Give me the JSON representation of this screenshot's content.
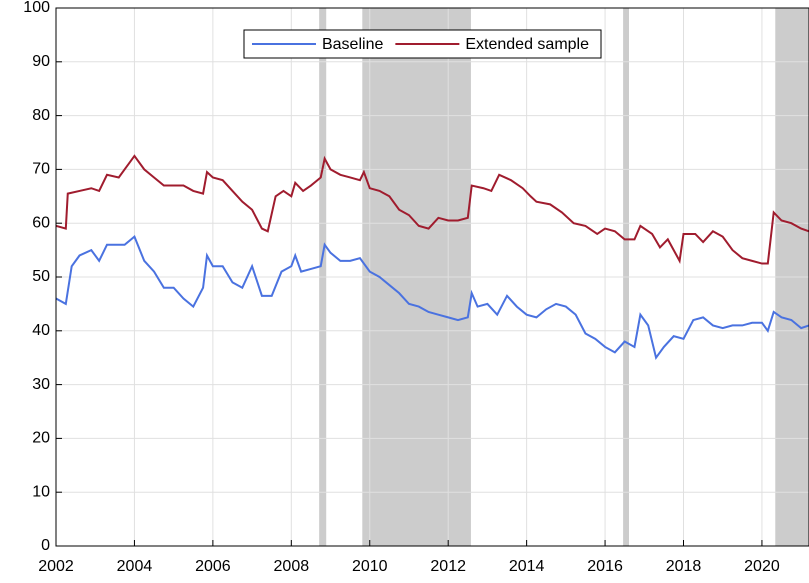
{
  "chart_data": {
    "type": "line",
    "xlim": [
      2002,
      2021.2
    ],
    "ylim": [
      0,
      100
    ],
    "xticks": [
      2002,
      2004,
      2006,
      2008,
      2010,
      2012,
      2014,
      2016,
      2018,
      2020
    ],
    "yticks": [
      0,
      10,
      20,
      30,
      40,
      50,
      60,
      70,
      80,
      90,
      100
    ],
    "grid": true,
    "legend": "upper center",
    "shaded_regions": [
      [
        2008.71,
        2008.89
      ],
      [
        2009.81,
        2012.58
      ],
      [
        2016.46,
        2016.61
      ],
      [
        2020.34,
        2021.2
      ]
    ],
    "shade_color": "#cccccc",
    "series": [
      {
        "name": "Baseline",
        "color": "#4a72e0",
        "x": [
          2002.0,
          2002.25,
          2002.4,
          2002.6,
          2002.9,
          2003.1,
          2003.3,
          2003.5,
          2003.75,
          2004.0,
          2004.25,
          2004.5,
          2004.75,
          2005.0,
          2005.25,
          2005.5,
          2005.75,
          2005.85,
          2006.0,
          2006.25,
          2006.5,
          2006.75,
          2007.0,
          2007.25,
          2007.5,
          2007.75,
          2008.0,
          2008.1,
          2008.25,
          2008.5,
          2008.75,
          2008.85,
          2009.0,
          2009.25,
          2009.5,
          2009.75,
          2010.0,
          2010.25,
          2010.5,
          2010.75,
          2011.0,
          2011.25,
          2011.5,
          2011.75,
          2012.0,
          2012.25,
          2012.5,
          2012.6,
          2012.75,
          2013.0,
          2013.25,
          2013.5,
          2013.75,
          2014.0,
          2014.25,
          2014.5,
          2014.75,
          2015.0,
          2015.25,
          2015.5,
          2015.75,
          2016.0,
          2016.25,
          2016.5,
          2016.75,
          2016.9,
          2017.1,
          2017.3,
          2017.5,
          2017.75,
          2018.0,
          2018.25,
          2018.5,
          2018.75,
          2019.0,
          2019.25,
          2019.5,
          2019.75,
          2020.0,
          2020.15,
          2020.3,
          2020.5,
          2020.75,
          2021.0,
          2021.2
        ],
        "values": [
          46,
          45,
          52,
          54,
          55,
          53,
          56,
          56,
          56,
          57.5,
          53,
          51,
          48,
          48,
          46,
          44.5,
          48,
          54,
          52,
          52,
          49,
          48,
          52,
          46.5,
          46.5,
          51,
          52,
          54,
          51,
          51.5,
          52,
          56,
          54.5,
          53,
          53,
          53.5,
          51,
          50,
          48.5,
          47,
          45,
          44.5,
          43.5,
          43,
          42.5,
          42,
          42.5,
          47,
          44.5,
          45,
          43,
          46.5,
          44.5,
          43,
          42.5,
          44,
          45,
          44.5,
          43,
          39.5,
          38.5,
          37,
          36,
          38,
          37,
          43,
          41,
          35,
          37,
          39,
          38.5,
          42,
          42.5,
          41,
          40.5,
          41,
          41,
          41.5,
          41.5,
          40,
          43.5,
          42.5,
          42,
          40.5,
          41
        ]
      },
      {
        "name": "Extended sample",
        "color": "#a01c2e",
        "x": [
          2002.0,
          2002.25,
          2002.3,
          2002.6,
          2002.9,
          2003.1,
          2003.3,
          2003.6,
          2003.8,
          2004.0,
          2004.25,
          2004.5,
          2004.75,
          2005.0,
          2005.25,
          2005.5,
          2005.75,
          2005.85,
          2006.0,
          2006.25,
          2006.5,
          2006.75,
          2007.0,
          2007.25,
          2007.4,
          2007.6,
          2007.8,
          2008.0,
          2008.1,
          2008.3,
          2008.5,
          2008.75,
          2008.85,
          2009.0,
          2009.25,
          2009.5,
          2009.75,
          2009.85,
          2010.0,
          2010.25,
          2010.5,
          2010.75,
          2011.0,
          2011.25,
          2011.5,
          2011.75,
          2012.0,
          2012.25,
          2012.5,
          2012.6,
          2012.9,
          2013.1,
          2013.3,
          2013.6,
          2013.9,
          2014.1,
          2014.25,
          2014.6,
          2014.9,
          2015.2,
          2015.5,
          2015.8,
          2016.0,
          2016.25,
          2016.5,
          2016.75,
          2016.9,
          2017.2,
          2017.4,
          2017.6,
          2017.9,
          2018.0,
          2018.3,
          2018.5,
          2018.75,
          2019.0,
          2019.25,
          2019.5,
          2019.75,
          2020.0,
          2020.15,
          2020.3,
          2020.5,
          2020.75,
          2021.0,
          2021.2
        ],
        "values": [
          59.5,
          59,
          65.5,
          66,
          66.5,
          66,
          69,
          68.5,
          70.5,
          72.5,
          70,
          68.5,
          67,
          67,
          67,
          66,
          65.5,
          69.5,
          68.5,
          68,
          66,
          64,
          62.5,
          59,
          58.5,
          65,
          66,
          65,
          67.5,
          66,
          67,
          68.5,
          72,
          70,
          69,
          68.5,
          68,
          69.5,
          66.5,
          66,
          65,
          62.5,
          61.5,
          59.5,
          59,
          61,
          60.5,
          60.5,
          61,
          67,
          66.5,
          66,
          69,
          68,
          66.5,
          65,
          64,
          63.5,
          62,
          60,
          59.5,
          58,
          59,
          58.5,
          57,
          57,
          59.5,
          58,
          55.5,
          57,
          53,
          58,
          58,
          56.5,
          58.5,
          57.5,
          55,
          53.5,
          53,
          52.5,
          52.5,
          62,
          60.5,
          60,
          59,
          58.5
        ]
      }
    ]
  }
}
